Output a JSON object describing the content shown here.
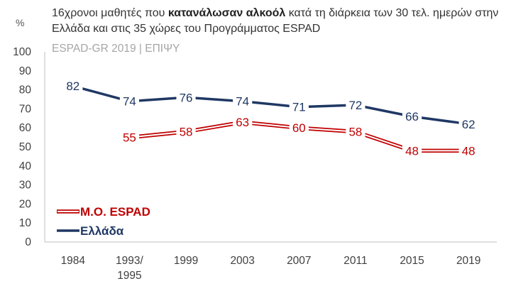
{
  "chart_data": {
    "type": "line",
    "title_parts": {
      "before": "16χρονοι μαθητές που ",
      "bold": "κατανάλωσαν αλκοόλ",
      "after": " κατά τη διάρκεια των 30 τελ. ημερών στην Ελλάδα και στις 35 χώρες του Προγράμματος ESPAD"
    },
    "subtitle": "ESPAD-GR 2019 | ΕΠΙΨΥ",
    "ylabel": "%",
    "ylim": [
      0,
      100
    ],
    "yticks": [
      "0",
      "10",
      "20",
      "30",
      "40",
      "50",
      "60",
      "70",
      "80",
      "90",
      "100"
    ],
    "categories": [
      "1984",
      "1993/\n1995",
      "1999",
      "2003",
      "2007",
      "2011",
      "2015",
      "2019"
    ],
    "series": [
      {
        "name": "Ελλάδα",
        "values": [
          82,
          74,
          76,
          74,
          71,
          72,
          66,
          62
        ],
        "color": "#1f3864",
        "style": "solid"
      },
      {
        "name": "Μ.Ο. ESPAD",
        "values": [
          null,
          55,
          58,
          63,
          60,
          58,
          48,
          48
        ],
        "color": "#c00000",
        "style": "double"
      }
    ],
    "legend_position": "bottom-left",
    "grid": false
  }
}
